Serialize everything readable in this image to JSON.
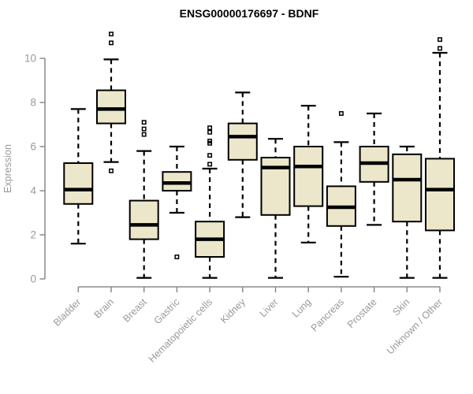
{
  "chart_data": {
    "type": "boxplot",
    "title": "ENSG00000176697 - BDNF",
    "xlabel": "",
    "ylabel": "Expression",
    "ylim": [
      0,
      10
    ],
    "yticks": [
      0,
      2,
      4,
      6,
      8,
      10
    ],
    "grid": false,
    "legend": false,
    "box_fill": "#ECE7CB",
    "box_stroke": "#000000",
    "axis_color": "#8a8a8a",
    "tick_label_color": "#999999",
    "title_color": "#000000",
    "categories": [
      "Bladder",
      "Brain",
      "Breast",
      "Gastric",
      "Hematopoietic cells",
      "Kidney",
      "Liver",
      "Lung",
      "Pancreas",
      "Prostate",
      "Skin",
      "Unknown / Other"
    ],
    "series": [
      {
        "name": "Bladder",
        "whisker_low": 1.6,
        "q1": 3.4,
        "median": 4.05,
        "q3": 5.25,
        "whisker_high": 7.7,
        "outliers": []
      },
      {
        "name": "Brain",
        "whisker_low": 5.3,
        "q1": 7.05,
        "median": 7.7,
        "q3": 8.55,
        "whisker_high": 9.95,
        "outliers": [
          11.1,
          10.7,
          4.9
        ]
      },
      {
        "name": "Breast",
        "whisker_low": 0.05,
        "q1": 1.8,
        "median": 2.45,
        "q3": 3.55,
        "whisker_high": 5.8,
        "outliers": [
          7.1,
          6.8,
          6.55
        ]
      },
      {
        "name": "Gastric",
        "whisker_low": 3.0,
        "q1": 4.0,
        "median": 4.35,
        "q3": 4.85,
        "whisker_high": 6.0,
        "outliers": [
          1.0
        ]
      },
      {
        "name": "Hematopoietic cells",
        "whisker_low": 0.05,
        "q1": 1.0,
        "median": 1.8,
        "q3": 2.6,
        "whisker_high": 5.0,
        "outliers": [
          6.85,
          6.65,
          6.25,
          6.15,
          5.6,
          5.2
        ]
      },
      {
        "name": "Kidney",
        "whisker_low": 2.8,
        "q1": 5.4,
        "median": 6.45,
        "q3": 7.05,
        "whisker_high": 8.45,
        "outliers": []
      },
      {
        "name": "Liver",
        "whisker_low": 0.05,
        "q1": 2.9,
        "median": 5.05,
        "q3": 5.5,
        "whisker_high": 6.35,
        "outliers": []
      },
      {
        "name": "Lung",
        "whisker_low": 1.65,
        "q1": 3.3,
        "median": 5.1,
        "q3": 6.0,
        "whisker_high": 7.85,
        "outliers": []
      },
      {
        "name": "Pancreas",
        "whisker_low": 0.1,
        "q1": 2.4,
        "median": 3.25,
        "q3": 4.2,
        "whisker_high": 6.2,
        "outliers": [
          7.5
        ]
      },
      {
        "name": "Prostate",
        "whisker_low": 2.45,
        "q1": 4.4,
        "median": 5.25,
        "q3": 6.0,
        "whisker_high": 7.5,
        "outliers": []
      },
      {
        "name": "Skin",
        "whisker_low": 0.05,
        "q1": 2.6,
        "median": 4.5,
        "q3": 5.65,
        "whisker_high": 6.0,
        "outliers": []
      },
      {
        "name": "Unknown / Other",
        "whisker_low": 0.05,
        "q1": 2.2,
        "median": 4.05,
        "q3": 5.45,
        "whisker_high": 10.25,
        "outliers": [
          10.85,
          10.45
        ]
      }
    ]
  }
}
